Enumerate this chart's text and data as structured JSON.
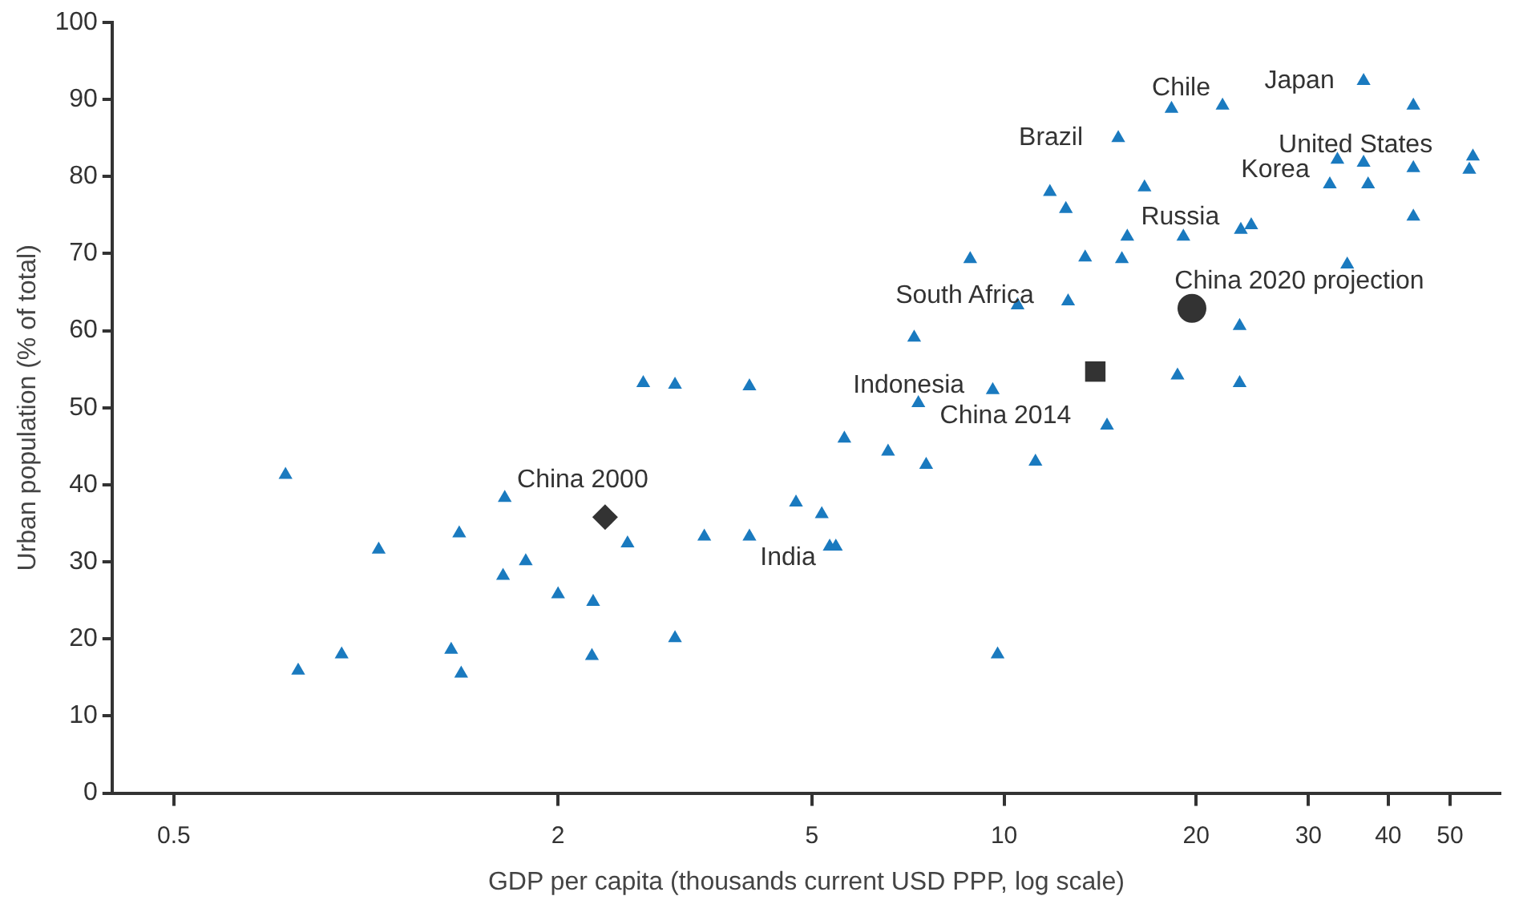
{
  "chart_data": {
    "type": "scatter",
    "xlabel": "GDP per capita (thousands current USD PPP, log scale)",
    "ylabel": "Urban population (% of total)",
    "log": "x",
    "xlim": [
      0.4,
      60
    ],
    "xticks": [
      0.5,
      2,
      5,
      10,
      20,
      30,
      40,
      50
    ],
    "ylim": [
      0,
      100
    ],
    "yticks": [
      0,
      10,
      20,
      30,
      40,
      50,
      60,
      70,
      80,
      90,
      100
    ],
    "grid": false,
    "legend": false,
    "series": [
      {
        "color": "#1a7abf",
        "marker": "triangle",
        "x": [
          0.748,
          0.783,
          0.916,
          1.047,
          1.36,
          1.4,
          1.41,
          1.65,
          1.64,
          1.78,
          2.0,
          2.27,
          2.26,
          2.57,
          2.72,
          3.05,
          3.05,
          3.39,
          3.99,
          3.99,
          4.72,
          5.18,
          5.33,
          5.45,
          5.62,
          6.58,
          7.34,
          7.55,
          9.6,
          9.77,
          11.2,
          14.5,
          36.6,
          22.0,
          18.3,
          43.8,
          15.1,
          54.3,
          53.6,
          33.3,
          36.6,
          43.8,
          32.4,
          37.2,
          16.6,
          11.8,
          12.5,
          43.8,
          23.5,
          24.4,
          15.6,
          19.1,
          8.85,
          13.4,
          15.3,
          34.5,
          10.5,
          12.6,
          7.23,
          23.4,
          18.7,
          23.4
        ],
        "values": [
          41.3,
          15.9,
          18.0,
          31.6,
          18.6,
          33.7,
          15.5,
          38.3,
          28.2,
          30.1,
          25.8,
          24.8,
          17.8,
          32.4,
          53.2,
          53.0,
          20.1,
          33.3,
          52.8,
          33.3,
          37.7,
          36.2,
          32.0,
          32.0,
          46.0,
          44.3,
          50.6,
          42.6,
          52.3,
          18.0,
          43.0,
          47.7,
          92.4,
          89.2,
          88.8,
          89.2,
          85.0,
          82.6,
          80.9,
          82.2,
          81.8,
          81.1,
          79.0,
          79.0,
          78.6,
          78.0,
          75.8,
          74.8,
          73.1,
          73.7,
          72.2,
          72.2,
          69.3,
          69.5,
          69.3,
          68.6,
          63.3,
          63.8,
          59.1,
          60.6,
          54.2,
          53.2
        ]
      },
      {
        "color": "#333333",
        "marker": "diamond",
        "x": [
          2.37
        ],
        "values": [
          35.8
        ]
      },
      {
        "color": "#333333",
        "marker": "square",
        "x": [
          13.9
        ],
        "values": [
          54.7
        ]
      },
      {
        "color": "#333333",
        "marker": "circle",
        "x": [
          19.7
        ],
        "values": [
          62.9
        ]
      }
    ],
    "annotations": [
      {
        "text": "Chile",
        "x": 18.3,
        "y": 88.8
      },
      {
        "text": "Japan",
        "x": 36.6,
        "y": 92.4
      },
      {
        "text": "Brazil",
        "x": 15.1,
        "y": 85.0
      },
      {
        "text": "United States",
        "x": 36.6,
        "y": 81.8
      },
      {
        "text": "Korea",
        "x": 32.4,
        "y": 79.0
      },
      {
        "text": "Russia",
        "x": 19.1,
        "y": 72.2
      },
      {
        "text": "China 2020 projection",
        "x": 19.7,
        "y": 62.9
      },
      {
        "text": "South Africa",
        "x": 10.5,
        "y": 63.3
      },
      {
        "text": "Indonesia",
        "x": 7.34,
        "y": 50.6
      },
      {
        "text": "China 2014",
        "x": 13.9,
        "y": 54.7
      },
      {
        "text": "China 2000",
        "x": 2.37,
        "y": 35.8
      },
      {
        "text": "India",
        "x": 5.33,
        "y": 32.0
      }
    ]
  }
}
